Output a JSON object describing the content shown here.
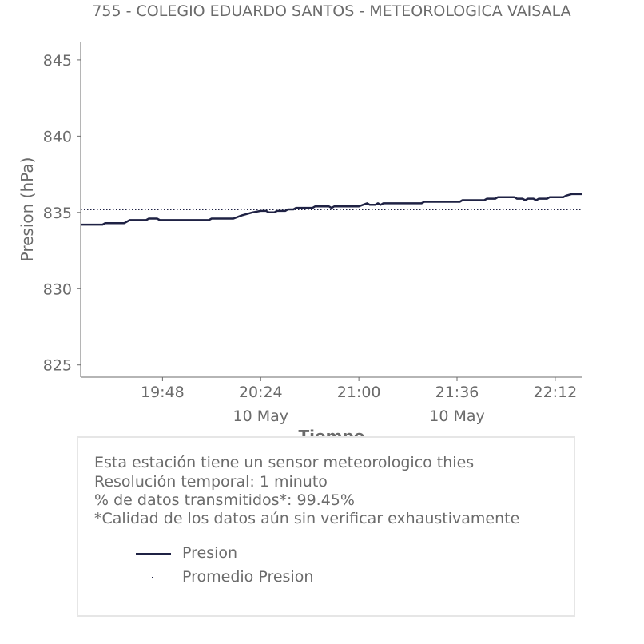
{
  "title": "755 - COLEGIO EDUARDO SANTOS - METEOROLOGICA VAISALA",
  "colors": {
    "series": "#1f2244",
    "axis": "#6b6b6b",
    "text": "#6b6b6b",
    "box_border": "#e6e6e6"
  },
  "chart_data": {
    "type": "line",
    "xlabel": "Tiempo",
    "ylabel": "Presion (hPa)",
    "ylim": [
      824.2,
      846.2
    ],
    "yticks": [
      825,
      830,
      835,
      840,
      845
    ],
    "xlim": [
      "19:18",
      "22:22"
    ],
    "xticks": [
      {
        "time": "19:48",
        "label": "19:48",
        "sublabel": ""
      },
      {
        "time": "20:24",
        "label": "20:24",
        "sublabel": "10 May"
      },
      {
        "time": "21:00",
        "label": "21:00",
        "sublabel": ""
      },
      {
        "time": "21:36",
        "label": "21:36",
        "sublabel": "10 May"
      },
      {
        "time": "22:12",
        "label": "22:12",
        "sublabel": ""
      }
    ],
    "grid": false,
    "series": [
      {
        "name": "Presion",
        "style": "solid",
        "points": [
          [
            "19:18",
            834.2
          ],
          [
            "19:26",
            834.2
          ],
          [
            "19:27",
            834.3
          ],
          [
            "19:34",
            834.3
          ],
          [
            "19:36",
            834.5
          ],
          [
            "19:42",
            834.5
          ],
          [
            "19:43",
            834.6
          ],
          [
            "19:46",
            834.6
          ],
          [
            "19:47",
            834.5
          ],
          [
            "20:05",
            834.5
          ],
          [
            "20:06",
            834.6
          ],
          [
            "20:14",
            834.6
          ],
          [
            "20:17",
            834.8
          ],
          [
            "20:19",
            834.9
          ],
          [
            "20:21",
            835.0
          ],
          [
            "20:24",
            835.1
          ],
          [
            "20:26",
            835.1
          ],
          [
            "20:27",
            835.0
          ],
          [
            "20:29",
            835.0
          ],
          [
            "20:30",
            835.1
          ],
          [
            "20:33",
            835.1
          ],
          [
            "20:34",
            835.2
          ],
          [
            "20:36",
            835.2
          ],
          [
            "20:37",
            835.3
          ],
          [
            "20:43",
            835.3
          ],
          [
            "20:44",
            835.4
          ],
          [
            "20:49",
            835.4
          ],
          [
            "20:50",
            835.3
          ],
          [
            "20:51",
            835.4
          ],
          [
            "20:58",
            835.4
          ],
          [
            "21:00",
            835.4
          ],
          [
            "21:03",
            835.6
          ],
          [
            "21:04",
            835.5
          ],
          [
            "21:06",
            835.5
          ],
          [
            "21:07",
            835.6
          ],
          [
            "21:08",
            835.5
          ],
          [
            "21:09",
            835.6
          ],
          [
            "21:23",
            835.6
          ],
          [
            "21:24",
            835.7
          ],
          [
            "21:37",
            835.7
          ],
          [
            "21:38",
            835.8
          ],
          [
            "21:46",
            835.8
          ],
          [
            "21:47",
            835.9
          ],
          [
            "21:50",
            835.9
          ],
          [
            "21:51",
            836.0
          ],
          [
            "21:57",
            836.0
          ],
          [
            "21:58",
            835.9
          ],
          [
            "22:00",
            835.9
          ],
          [
            "22:01",
            835.8
          ],
          [
            "22:02",
            835.9
          ],
          [
            "22:04",
            835.9
          ],
          [
            "22:05",
            835.8
          ],
          [
            "22:06",
            835.9
          ],
          [
            "22:09",
            835.9
          ],
          [
            "22:10",
            836.0
          ],
          [
            "22:15",
            836.0
          ],
          [
            "22:16",
            836.1
          ],
          [
            "22:18",
            836.2
          ],
          [
            "22:22",
            836.2
          ]
        ]
      },
      {
        "name": "Promedio Presion",
        "style": "dotted",
        "value": 835.2
      }
    ]
  },
  "info": {
    "line1": "Esta estación tiene un sensor meteorologico thies",
    "line2": "Resolución temporal: 1 minuto",
    "line3": "% de datos transmitidos*: 99.45%",
    "line4": "*Calidad de los datos aún sin verificar exhaustivamente"
  },
  "legend": {
    "item1": "Presion",
    "item2": "Promedio Presion"
  }
}
